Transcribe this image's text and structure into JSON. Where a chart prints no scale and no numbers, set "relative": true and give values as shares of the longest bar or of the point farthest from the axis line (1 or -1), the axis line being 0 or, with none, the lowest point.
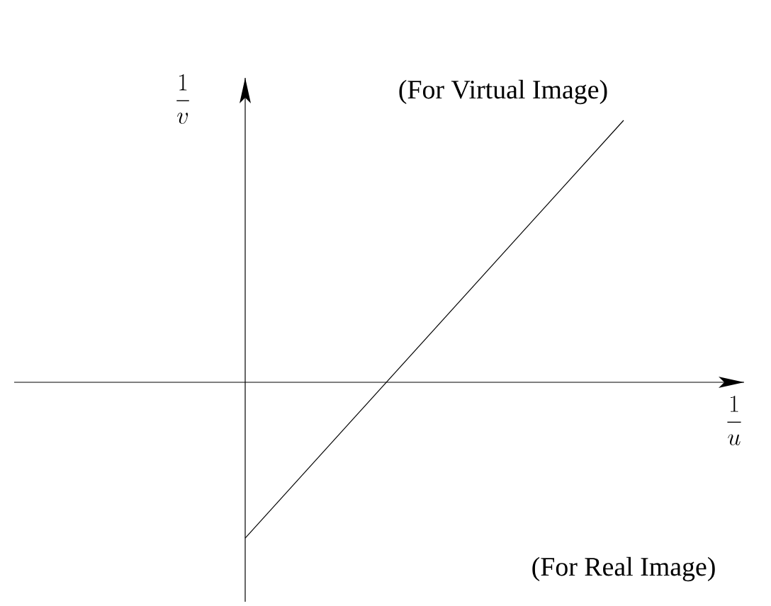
{
  "chart_data": {
    "type": "line",
    "relative": true,
    "categories": [
      null,
      null
    ],
    "values": [
      -0.595,
      1
    ],
    "color": "#000000",
    "tick_labels": false,
    "xlabel": "\\frac{1}{u}",
    "ylabel": "\\frac{1}{v}",
    "annotations": [
      "(For Virtual Image)",
      "(For Real Image)"
    ]
  }
}
